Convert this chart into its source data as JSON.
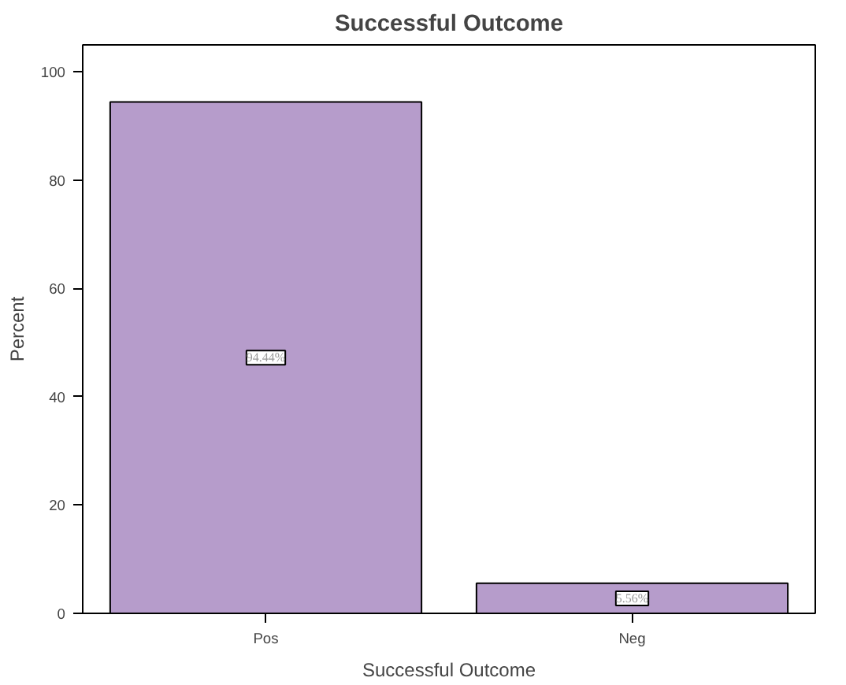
{
  "chart_data": {
    "type": "bar",
    "title": "Successful Outcome",
    "xlabel": "Successful Outcome",
    "ylabel": "Percent",
    "categories": [
      "Pos",
      "Neg"
    ],
    "values": [
      94.44,
      5.56
    ],
    "value_labels": [
      "94.44%",
      "5.56%"
    ],
    "color": "#b69ccb",
    "ylim": [
      0,
      105
    ],
    "yticks": [
      0,
      20,
      40,
      60,
      80,
      100
    ],
    "grid": false
  }
}
